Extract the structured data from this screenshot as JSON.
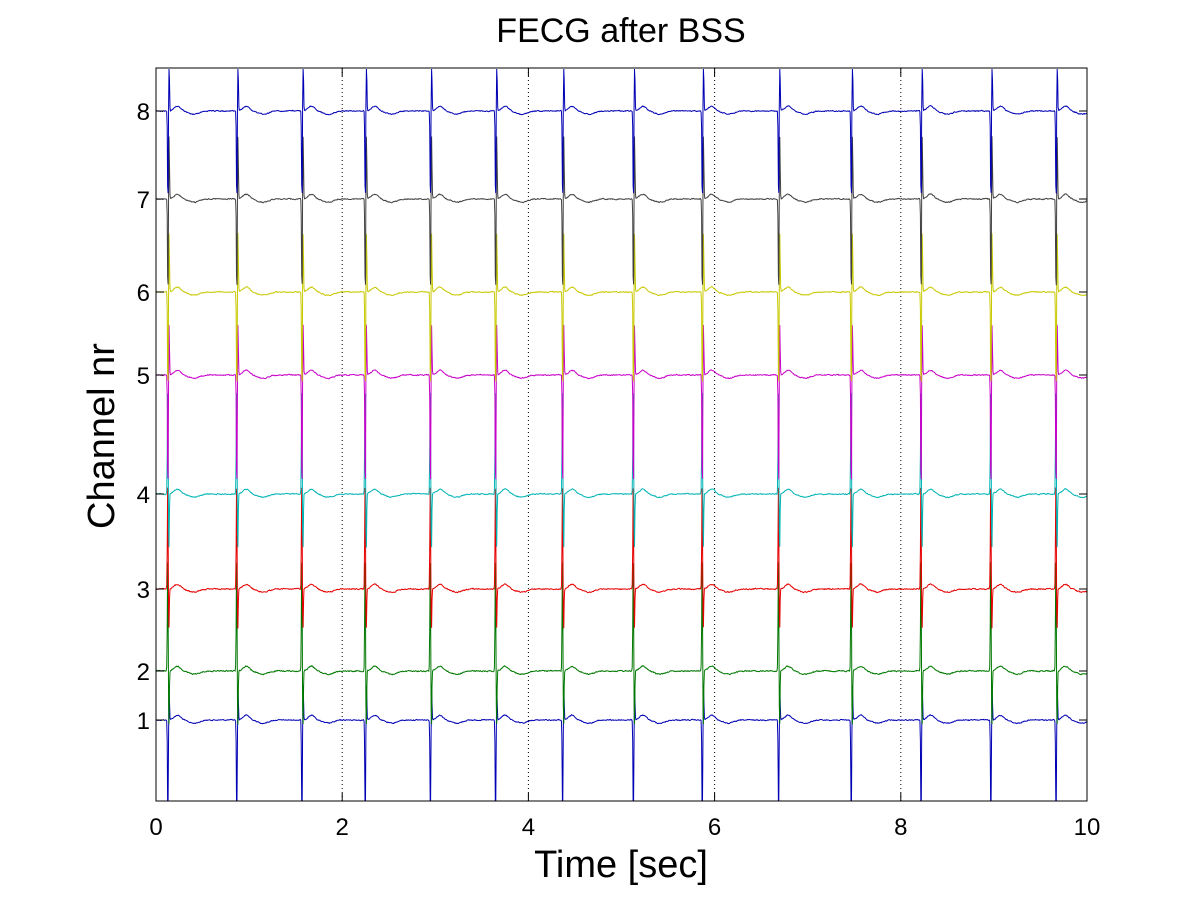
{
  "chart_data": {
    "type": "line",
    "title": "FECG after BSS",
    "xlabel": "Time [sec]",
    "ylabel": "Channel nr",
    "xlim": [
      0,
      10
    ],
    "x_ticks": [
      "0",
      "2",
      "4",
      "6",
      "8",
      "10"
    ],
    "x_tick_values": [
      0,
      2,
      4,
      6,
      8,
      10
    ],
    "grid": "vertical dotted at x ticks",
    "beat_times": [
      0.13,
      0.87,
      1.57,
      2.25,
      2.95,
      3.65,
      4.37,
      5.13,
      5.87,
      6.69,
      7.47,
      8.22,
      8.97,
      9.67
    ],
    "series": [
      {
        "channel": 1,
        "label": "1",
        "baseline": 1.0,
        "color": "#0000b4",
        "spike_up": 0.9,
        "spike_down": 3.1,
        "noise": 0.07
      },
      {
        "channel": 2,
        "label": "2",
        "baseline": 2.0,
        "color": "#007800",
        "spike_up": 2.8,
        "spike_down": 1.5,
        "noise": 0.08
      },
      {
        "channel": 3,
        "label": "3",
        "baseline": 3.0,
        "color": "#e60000",
        "spike_up": 2.6,
        "spike_down": 1.1,
        "noise": 0.08
      },
      {
        "channel": 4,
        "label": "4",
        "baseline": 4.0,
        "color": "#00b4b4",
        "spike_up": 2.6,
        "spike_down": 1.5,
        "noise": 0.07
      },
      {
        "channel": 5,
        "label": "5",
        "baseline": 5.0,
        "color": "#c800c8",
        "spike_up": 1.3,
        "spike_down": 3.0,
        "noise": 0.07
      },
      {
        "channel": 6,
        "label": "6",
        "baseline": 6.0,
        "color": "#c8c800",
        "spike_up": 1.5,
        "spike_down": 2.6,
        "noise": 0.07
      },
      {
        "channel": 7,
        "label": "7",
        "baseline": 7.0,
        "color": "#404040",
        "spike_up": 1.6,
        "spike_down": 2.5,
        "noise": 0.07
      },
      {
        "channel": 8,
        "label": "8",
        "baseline": 8.0,
        "color": "#0000b4",
        "spike_up": 1.5,
        "spike_down": 2.4,
        "noise": 0.07
      }
    ]
  }
}
